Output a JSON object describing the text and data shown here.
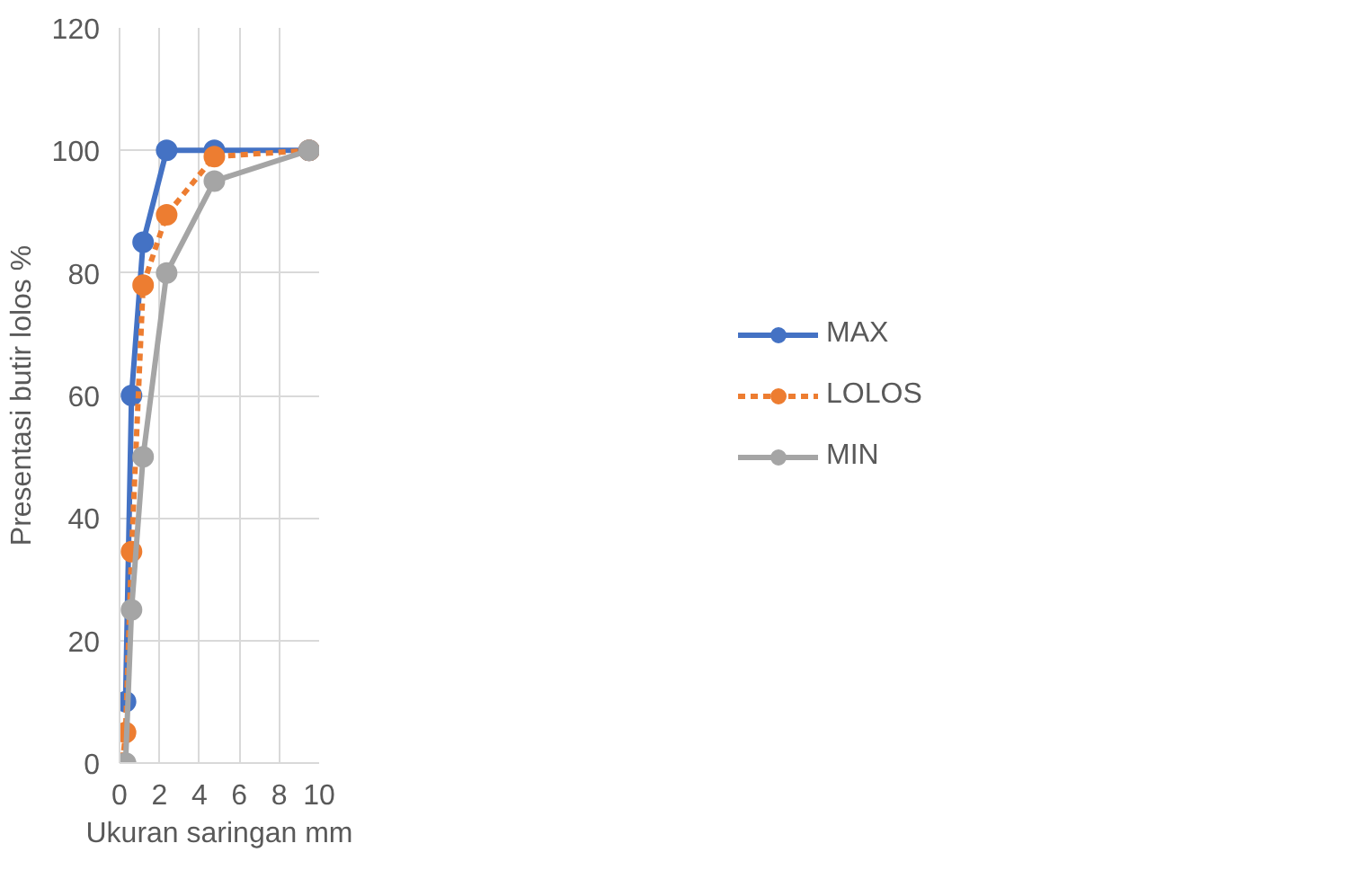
{
  "chart_data": {
    "type": "line",
    "xlabel": "Ukuran saringan mm",
    "ylabel": "Presentasi butir lolos %",
    "xlim": [
      0,
      10
    ],
    "ylim": [
      0,
      120
    ],
    "xticks": [
      0,
      2,
      4,
      6,
      8,
      10
    ],
    "yticks": [
      0,
      20,
      40,
      60,
      80,
      100,
      120
    ],
    "grid": true,
    "legend": "right",
    "marker": "circle",
    "series": [
      {
        "name": "MAX",
        "color": "#4472c4",
        "line_style": "solid",
        "x": [
          0.3,
          0.6,
          1.18,
          2.36,
          4.75,
          9.5
        ],
        "values": [
          10,
          60,
          85,
          100,
          100,
          100
        ]
      },
      {
        "name": "LOLOS",
        "color": "#ed7d31",
        "line_style": "dashed",
        "x": [
          0.15,
          0.3,
          0.6,
          1.18,
          2.36,
          4.75,
          9.5
        ],
        "values": [
          0,
          5,
          34.5,
          78,
          89.5,
          99,
          100
        ]
      },
      {
        "name": "MIN",
        "color": "#a5a5a5",
        "line_style": "solid",
        "x": [
          0.3,
          0.6,
          1.18,
          2.36,
          4.75,
          9.5
        ],
        "values": [
          0,
          25,
          50,
          80,
          95,
          100
        ]
      }
    ]
  }
}
